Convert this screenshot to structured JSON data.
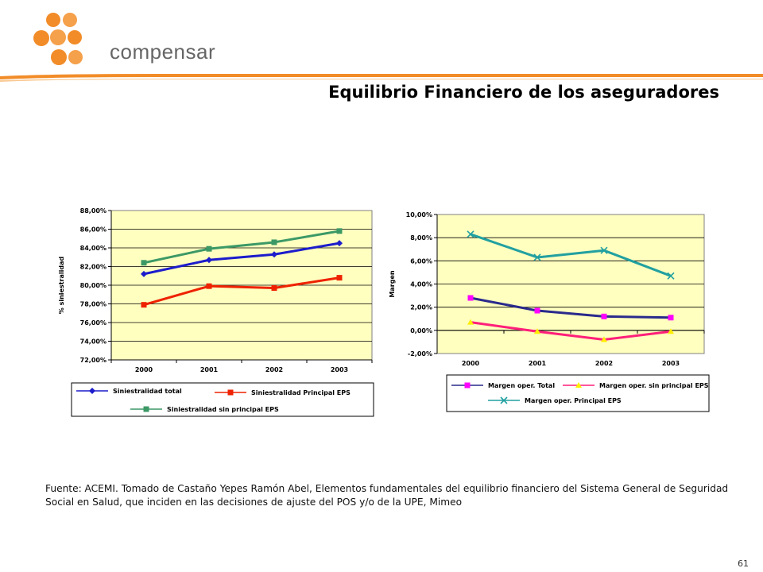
{
  "brand": {
    "name": "compensar",
    "accent": "#f28c28"
  },
  "title": "Equilibrio Financiero de los aseguradores",
  "source_text": "Fuente: ACEMI. Tomado de Castaño Yepes Ramón Abel, Elementos fundamentales del equilibrio financiero del Sistema General de Seguridad Social en Salud, que inciden en las decisiones de ajuste del POS y/o de la UPE, Mimeo",
  "page_number": "61",
  "chart_data": [
    {
      "type": "line",
      "title": "",
      "xlabel": "",
      "ylabel": "% siniestralidad",
      "categories": [
        "2000",
        "2001",
        "2002",
        "2003"
      ],
      "ylim": [
        72,
        88
      ],
      "yticks": [
        "72,00%",
        "74,00%",
        "76,00%",
        "78,00%",
        "80,00%",
        "82,00%",
        "84,00%",
        "86,00%",
        "88,00%"
      ],
      "plot_background": "#ffffc0",
      "grid": "horizontal",
      "legend_position": "bottom",
      "series": [
        {
          "name": "Siniestralidad total",
          "values": [
            81.2,
            82.7,
            83.3,
            84.5
          ],
          "color": "#1c1ccc",
          "marker": "diamond"
        },
        {
          "name": "Siniestralidad Principal EPS",
          "values": [
            77.9,
            79.9,
            79.7,
            80.8
          ],
          "color": "#ee2200",
          "marker": "square"
        },
        {
          "name": "Siniestralidad sin principal EPS",
          "values": [
            82.4,
            83.9,
            84.6,
            85.8
          ],
          "color": "#3c9966",
          "marker": "square"
        }
      ]
    },
    {
      "type": "line",
      "title": "",
      "xlabel": "",
      "ylabel": "Margen",
      "categories": [
        "2000",
        "2001",
        "2002",
        "2003"
      ],
      "ylim": [
        -2,
        10
      ],
      "yticks": [
        "-2,00%",
        "0,00%",
        "2,00%",
        "4,00%",
        "6,00%",
        "8,00%",
        "10,00%"
      ],
      "plot_background": "#ffffc0",
      "grid": "horizontal",
      "legend_position": "bottom",
      "series": [
        {
          "name": "Margen oper. Total",
          "values": [
            2.8,
            1.7,
            1.2,
            1.1
          ],
          "color": "#2a2a8c",
          "marker_color": "#ff00ff",
          "marker": "square"
        },
        {
          "name": "Margen oper. sin principal EPS",
          "values": [
            0.7,
            -0.1,
            -0.8,
            -0.1
          ],
          "color": "#ff1f7a",
          "marker_color": "#ffee00",
          "marker": "triangle"
        },
        {
          "name": "Margen oper. Principal EPS",
          "values": [
            8.3,
            6.3,
            6.9,
            4.7
          ],
          "color": "#22a0a0",
          "marker": "x"
        }
      ]
    }
  ]
}
